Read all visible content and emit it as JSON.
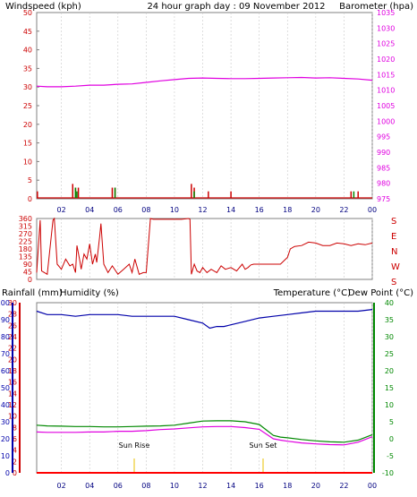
{
  "header": {
    "left_label": "Windspeed (kph)",
    "title": "24 hour graph day : 09 November 2012",
    "right_label": "Barometer (hpa)"
  },
  "colors": {
    "frame": "#808080",
    "grid": "#c8c8c8",
    "red": "#cc0000",
    "magenta": "#e000e0",
    "blue": "#0000aa",
    "green": "#008800",
    "navy": "#000080",
    "sun": "#e8c000",
    "rain": "#ff0000"
  },
  "x_ticks": [
    "02",
    "04",
    "06",
    "08",
    "10",
    "12",
    "14",
    "16",
    "18",
    "20",
    "22",
    "00"
  ],
  "compass": [
    "S",
    "E",
    "N",
    "W",
    "S"
  ],
  "panel3": {
    "left_a": "Rainfall (mm)",
    "left_b": "Humidity (%)",
    "right_a": "Temperature (°C)",
    "right_b": "Dew Point (°C)",
    "sun_rise": "Sun Rise",
    "sun_set": "Sun Set"
  },
  "chart_data": [
    {
      "type": "line",
      "title": "24 hour graph day : 09 November 2012",
      "xlabel": "",
      "x_ticks": [
        "02",
        "04",
        "06",
        "08",
        "10",
        "12",
        "14",
        "16",
        "18",
        "20",
        "22",
        "00"
      ],
      "xlim": [
        0.25,
        24
      ],
      "y_axes": [
        {
          "label": "Windspeed (kph)",
          "range": [
            0,
            50
          ],
          "ticks": [
            0,
            5,
            10,
            15,
            20,
            25,
            30,
            35,
            40,
            45,
            50
          ]
        },
        {
          "label": "Barometer (hpa)",
          "range": [
            975,
            1035
          ],
          "ticks": [
            975,
            980,
            985,
            990,
            995,
            1000,
            1005,
            1010,
            1015,
            1020,
            1025,
            1030,
            1035
          ]
        }
      ],
      "series": [
        {
          "name": "Barometer (hpa)",
          "axis": 1,
          "x": [
            0.25,
            1,
            2,
            3,
            4,
            5,
            6,
            7,
            8,
            9,
            10,
            11,
            12,
            13,
            14,
            15,
            16,
            17,
            18,
            19,
            20,
            21,
            22,
            23,
            24
          ],
          "values": [
            1011.3,
            1011.1,
            1011.1,
            1011.3,
            1011.6,
            1011.6,
            1011.9,
            1012.0,
            1012.5,
            1013.0,
            1013.4,
            1013.8,
            1013.9,
            1013.8,
            1013.7,
            1013.7,
            1013.8,
            1013.9,
            1014.0,
            1014.1,
            1013.9,
            1014.0,
            1013.8,
            1013.6,
            1013.2
          ]
        },
        {
          "name": "Wind Gust",
          "axis": 0,
          "x": [
            0.3,
            2.8,
            3.0,
            3.2,
            5.6,
            5.8,
            11.2,
            11.4,
            12.4,
            14.0,
            22.5,
            23.0
          ],
          "values": [
            2,
            4,
            3,
            3,
            3,
            3,
            4,
            3,
            2,
            2,
            2,
            2
          ]
        },
        {
          "name": "Wind Speed",
          "axis": 0,
          "x": [
            2.9,
            3.0,
            5.7,
            11.3,
            22.6
          ],
          "values": [
            3,
            2,
            3,
            2,
            2
          ]
        }
      ]
    },
    {
      "type": "line",
      "title": "",
      "ylabel": "",
      "y_range": [
        0,
        360
      ],
      "y_ticks": [
        0,
        45,
        90,
        135,
        180,
        225,
        270,
        315,
        360
      ],
      "right_labels": [
        "S",
        "E",
        "N",
        "W",
        "S"
      ],
      "series": [
        {
          "name": "",
          "x": [
            0.25,
            0.5,
            0.6,
            1.0,
            1.4,
            1.5,
            1.7,
            2.0,
            2.3,
            2.6,
            2.8,
            3.0,
            3.1,
            3.3,
            3.4,
            3.6,
            3.8,
            4.0,
            4.2,
            4.4,
            4.5,
            4.7,
            4.8,
            5.0,
            5.3,
            5.6,
            6.0,
            6.4,
            6.8,
            7.0,
            7.2,
            7.5,
            7.8,
            8.0,
            8.3,
            8.5,
            8.7,
            9.0,
            9.2,
            9.5,
            10.0,
            10.5,
            11.0,
            11.1,
            11.2,
            11.4,
            11.6,
            11.8,
            12.0,
            12.3,
            12.6,
            13.0,
            13.3,
            13.6,
            14.0,
            14.4,
            14.8,
            15.0,
            15.2,
            15.4,
            15.6,
            16.0,
            16.5,
            17.0,
            17.5,
            18.0,
            18.2,
            18.5,
            19.0,
            19.5,
            20.0,
            20.5,
            21.0,
            21.5,
            22.0,
            22.5,
            23.0,
            23.5,
            24.0
          ],
          "values": [
            40,
            350,
            50,
            30,
            350,
            360,
            90,
            60,
            120,
            80,
            90,
            40,
            200,
            110,
            60,
            150,
            120,
            210,
            90,
            150,
            100,
            250,
            330,
            90,
            40,
            80,
            30,
            60,
            90,
            40,
            120,
            30,
            40,
            40,
            360,
            355,
            355,
            355,
            355,
            355,
            355,
            355,
            360,
            355,
            30,
            90,
            50,
            40,
            70,
            40,
            60,
            40,
            80,
            60,
            70,
            50,
            90,
            60,
            70,
            85,
            90,
            90,
            90,
            90,
            90,
            130,
            180,
            195,
            200,
            220,
            215,
            200,
            200,
            215,
            210,
            200,
            210,
            205,
            215
          ]
        }
      ]
    },
    {
      "type": "line",
      "title": "",
      "xlabel": "",
      "y_axes": [
        {
          "label": "Rainfall (mm)",
          "range": [
            0,
            30
          ],
          "ticks": [
            0,
            2,
            4,
            6,
            8,
            10,
            12,
            14,
            16,
            18,
            20,
            22,
            24,
            26,
            28,
            30
          ]
        },
        {
          "label": "Humidity (%)",
          "range": [
            0,
            100
          ],
          "ticks": [
            0,
            10,
            20,
            30,
            40,
            50,
            60,
            70,
            80,
            90,
            100
          ]
        },
        {
          "label": "Temperature (°C) / Dew Point (°C)",
          "range": [
            -10,
            40
          ],
          "ticks": [
            -10,
            -5,
            0,
            5,
            10,
            15,
            20,
            25,
            30,
            35,
            40
          ]
        }
      ],
      "annotations": [
        "Sun Rise",
        "Sun Set"
      ],
      "series": [
        {
          "name": "Humidity (%)",
          "axis": 1,
          "x": [
            0.25,
            1,
            2,
            3,
            4,
            5,
            6,
            7,
            8,
            9,
            10,
            11,
            12,
            12.5,
            13,
            13.5,
            14,
            15,
            16,
            17,
            18,
            19,
            20,
            21,
            22,
            23,
            24
          ],
          "values": [
            95,
            93,
            93,
            92,
            93,
            93,
            93,
            92,
            92,
            92,
            92,
            90,
            88,
            85,
            86,
            86,
            87,
            89,
            91,
            92,
            93,
            94,
            95,
            95,
            95,
            95,
            96
          ]
        },
        {
          "name": "Temperature (°C)",
          "axis": 2,
          "x": [
            0.25,
            1,
            2,
            3,
            4,
            5,
            6,
            7,
            8,
            9,
            10,
            11,
            12,
            13,
            14,
            15,
            16,
            17,
            17.5,
            18,
            19,
            20,
            21,
            22,
            23,
            24
          ],
          "values": [
            4.0,
            3.8,
            3.7,
            3.6,
            3.6,
            3.5,
            3.5,
            3.6,
            3.7,
            3.8,
            4.0,
            4.6,
            5.2,
            5.3,
            5.3,
            5.0,
            4.2,
            1.0,
            0.5,
            0.3,
            -0.2,
            -0.6,
            -0.9,
            -1.0,
            -0.4,
            1.2
          ]
        },
        {
          "name": "Dew Point (°C)",
          "axis": 2,
          "x": [
            0.25,
            1,
            2,
            3,
            4,
            5,
            6,
            7,
            8,
            9,
            10,
            11,
            12,
            13,
            14,
            15,
            16,
            17,
            17.5,
            18,
            19,
            20,
            21,
            22,
            23,
            24
          ],
          "values": [
            2.0,
            1.9,
            1.9,
            1.9,
            2.0,
            2.0,
            2.2,
            2.2,
            2.4,
            2.7,
            2.9,
            3.2,
            3.5,
            3.6,
            3.6,
            3.3,
            2.8,
            0.0,
            -0.4,
            -0.7,
            -1.2,
            -1.5,
            -1.7,
            -1.8,
            -1.0,
            0.6
          ]
        },
        {
          "name": "Rainfall (mm)",
          "axis": 0,
          "x": [
            0.25,
            24
          ],
          "values": [
            0,
            0
          ]
        }
      ]
    }
  ]
}
